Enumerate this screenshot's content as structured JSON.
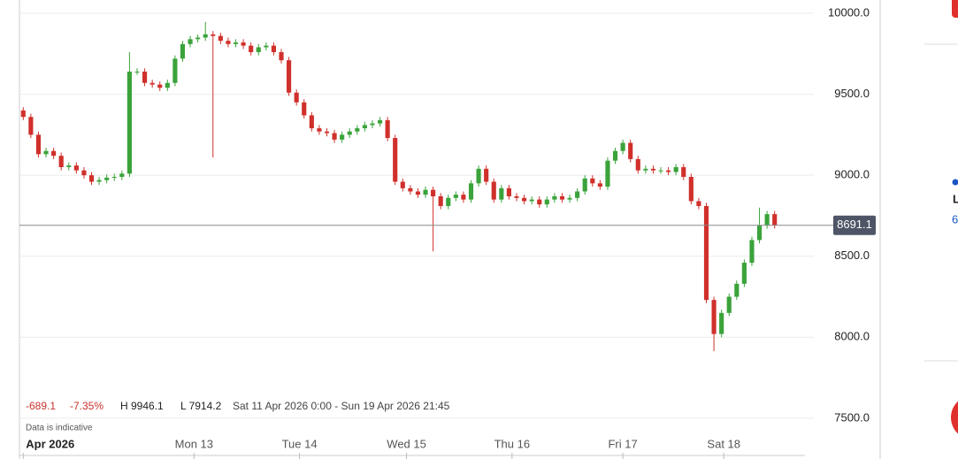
{
  "chart_data": {
    "type": "candlestick",
    "open": [
      9400,
      9360,
      9250,
      9130,
      9150,
      9120,
      9050,
      9060,
      9030,
      9000,
      8960,
      8970,
      8985,
      8990,
      9010,
      9640,
      9640,
      9570,
      9560,
      9540,
      9570,
      9720,
      9810,
      9840,
      9850,
      9870,
      9860,
      9830,
      9810,
      9820,
      9800,
      9760,
      9790,
      9800,
      9760,
      9710,
      9510,
      9450,
      9370,
      9290,
      9270,
      9260,
      9220,
      9250,
      9270,
      9290,
      9310,
      9320,
      9340,
      9230,
      8960,
      8920,
      8900,
      8880,
      8910,
      8870,
      8810,
      8860,
      8880,
      8850,
      8950,
      9040,
      8960,
      8850,
      8920,
      8870,
      8860,
      8840,
      8850,
      8820,
      8850,
      8870,
      8850,
      8860,
      8900,
      8980,
      8950,
      8930,
      9090,
      9150,
      9200,
      9100,
      9030,
      9040,
      9030,
      9030,
      9020,
      9050,
      8990,
      8840,
      8810,
      8230,
      8020,
      8150,
      8250,
      8330,
      8460,
      8600,
      8690,
      8760
    ],
    "high": [
      9420,
      9380,
      9270,
      9170,
      9170,
      9140,
      9080,
      9080,
      9050,
      9020,
      8990,
      9005,
      9010,
      9030,
      9760,
      9660,
      9660,
      9590,
      9580,
      9590,
      9740,
      9830,
      9860,
      9870,
      9946.1,
      9890,
      9880,
      9850,
      9840,
      9840,
      9820,
      9810,
      9820,
      9820,
      9780,
      9730,
      9530,
      9470,
      9390,
      9310,
      9290,
      9280,
      9270,
      9290,
      9310,
      9330,
      9340,
      9360,
      9360,
      9250,
      8980,
      8940,
      8920,
      8930,
      8930,
      8890,
      8880,
      8900,
      8900,
      8970,
      9060,
      9060,
      8980,
      8940,
      8940,
      8890,
      8880,
      8870,
      8870,
      8870,
      8890,
      8890,
      8880,
      8920,
      9000,
      9000,
      8970,
      9110,
      9170,
      9220,
      9220,
      9120,
      9060,
      9060,
      9050,
      9050,
      9070,
      9070,
      9010,
      8860,
      8830,
      8250,
      8170,
      8270,
      8350,
      8480,
      8620,
      8800,
      8780,
      8780
    ],
    "low": [
      9340,
      9230,
      9110,
      9110,
      9100,
      9030,
      9030,
      9010,
      8980,
      8940,
      8940,
      8950,
      8965,
      8970,
      8990,
      9620,
      9550,
      9540,
      9520,
      9520,
      9550,
      9700,
      9790,
      9820,
      9830,
      9110,
      9810,
      9790,
      9790,
      9780,
      9740,
      9740,
      9770,
      9740,
      9690,
      9490,
      9430,
      9350,
      9270,
      9250,
      9240,
      9200,
      9200,
      9230,
      9250,
      9270,
      9290,
      9300,
      9210,
      8940,
      8900,
      8880,
      8860,
      8860,
      8530,
      8790,
      8790,
      8840,
      8830,
      8830,
      8930,
      8940,
      8830,
      8830,
      8850,
      8840,
      8820,
      8820,
      8800,
      8800,
      8830,
      8830,
      8830,
      8840,
      8880,
      8930,
      8910,
      8910,
      9070,
      9130,
      9080,
      9010,
      9010,
      9010,
      9010,
      9000,
      9000,
      8970,
      8820,
      8790,
      8210,
      7914.2,
      8000,
      8130,
      8230,
      8310,
      8440,
      8580,
      8670,
      8671
    ],
    "close": [
      9360,
      9250,
      9130,
      9150,
      9120,
      9050,
      9060,
      9030,
      9000,
      8960,
      8970,
      8985,
      8990,
      9010,
      9640,
      9640,
      9570,
      9560,
      9540,
      9570,
      9720,
      9810,
      9840,
      9850,
      9870,
      9860,
      9830,
      9810,
      9820,
      9800,
      9760,
      9790,
      9800,
      9760,
      9710,
      9510,
      9450,
      9370,
      9290,
      9270,
      9260,
      9220,
      9250,
      9270,
      9290,
      9310,
      9320,
      9340,
      9230,
      8960,
      8920,
      8900,
      8880,
      8910,
      8870,
      8810,
      8860,
      8880,
      8850,
      8950,
      9040,
      8960,
      8850,
      8920,
      8870,
      8860,
      8840,
      8850,
      8820,
      8850,
      8870,
      8850,
      8860,
      8900,
      8980,
      8950,
      8930,
      9090,
      9150,
      9200,
      9100,
      9030,
      9040,
      9030,
      9030,
      9020,
      9050,
      8990,
      8840,
      8810,
      8230,
      8020,
      8150,
      8250,
      8330,
      8460,
      8600,
      8690,
      8760,
      8691.1
    ],
    "up_color": "#3aa33a",
    "down_color": "#d0302b",
    "xlim": [
      -0.5,
      99.5
    ],
    "xticks": [
      {
        "value": 0,
        "label": "Apr 2026"
      },
      {
        "value": 22.5,
        "label": "Mon 13"
      },
      {
        "value": 36.4,
        "label": "Tue 14"
      },
      {
        "value": 50.5,
        "label": "Wed 15"
      },
      {
        "value": 64.4,
        "label": "Thu 16"
      },
      {
        "value": 79,
        "label": "Fri 17"
      },
      {
        "value": 92.3,
        "label": "Sat 18"
      }
    ],
    "ylim": [
      7270,
      10082
    ],
    "yticks": [
      {
        "value": 7500,
        "label": "7500.0"
      },
      {
        "value": 8000,
        "label": "8000.0"
      },
      {
        "value": 8500,
        "label": "8500.0"
      },
      {
        "value": 9000,
        "label": "9000.0"
      },
      {
        "value": 9500,
        "label": "9500.0"
      },
      {
        "value": 10000,
        "label": "10000.0"
      }
    ],
    "grid": true,
    "last_price": 8691.1,
    "change": -689.1,
    "change_pct": {
      "value": -7.35,
      "label": "-7.35%"
    },
    "high_stat": {
      "value": 9946.1,
      "label": "H 9946.1"
    },
    "low_stat": {
      "value": 7914.2,
      "label": "L 7914.2"
    },
    "range": "Sat 11 Apr 2026 0:00 - Sun 19 Apr 2026 21:45",
    "note": "Data is indicative"
  },
  "sidebar": {
    "texts": [
      "L",
      "6"
    ]
  }
}
